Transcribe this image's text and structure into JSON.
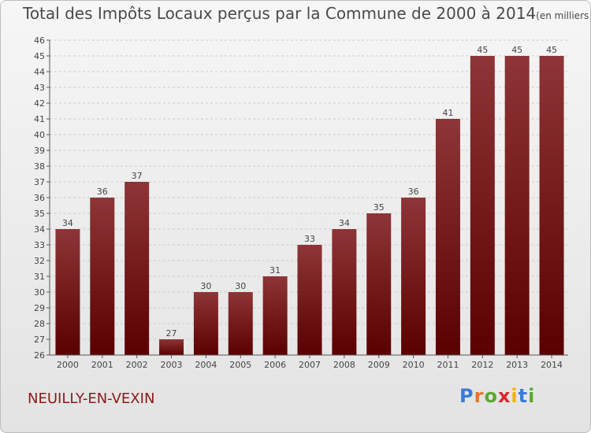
{
  "title": "Total des Impôts Locaux perçus par la Commune de 2000 à 2014",
  "unit": "(en milliers d'€)",
  "commune": "NEUILLY-EN-VEXIN",
  "logo": {
    "letters": [
      "P",
      "r",
      "o",
      "x",
      "i",
      "t",
      "i"
    ],
    "colors": [
      "#3a7bd5",
      "#e8742b",
      "#5aa832",
      "#d8262a",
      "#f0b400",
      "#3a7bd5",
      "#5aa832"
    ]
  },
  "colors": {
    "bar_top": "#8e3537",
    "bar_bottom": "#5a0000",
    "axis": "#555555",
    "grid": "#cccccc"
  },
  "chart_data": {
    "type": "bar",
    "title": "Total des Impôts Locaux perçus par la Commune de 2000 à 2014",
    "xlabel": "",
    "ylabel": "",
    "categories": [
      "2000",
      "2001",
      "2002",
      "2003",
      "2004",
      "2005",
      "2006",
      "2007",
      "2008",
      "2009",
      "2010",
      "2011",
      "2012",
      "2013",
      "2014"
    ],
    "values": [
      34,
      36,
      37,
      27,
      30,
      30,
      31,
      33,
      34,
      35,
      36,
      41,
      45,
      45,
      45
    ],
    "ylim": [
      26,
      46
    ],
    "yticks": [
      26,
      27,
      28,
      29,
      30,
      31,
      32,
      33,
      34,
      35,
      36,
      37,
      38,
      39,
      40,
      41,
      42,
      43,
      44,
      45,
      46
    ],
    "grid": true
  }
}
